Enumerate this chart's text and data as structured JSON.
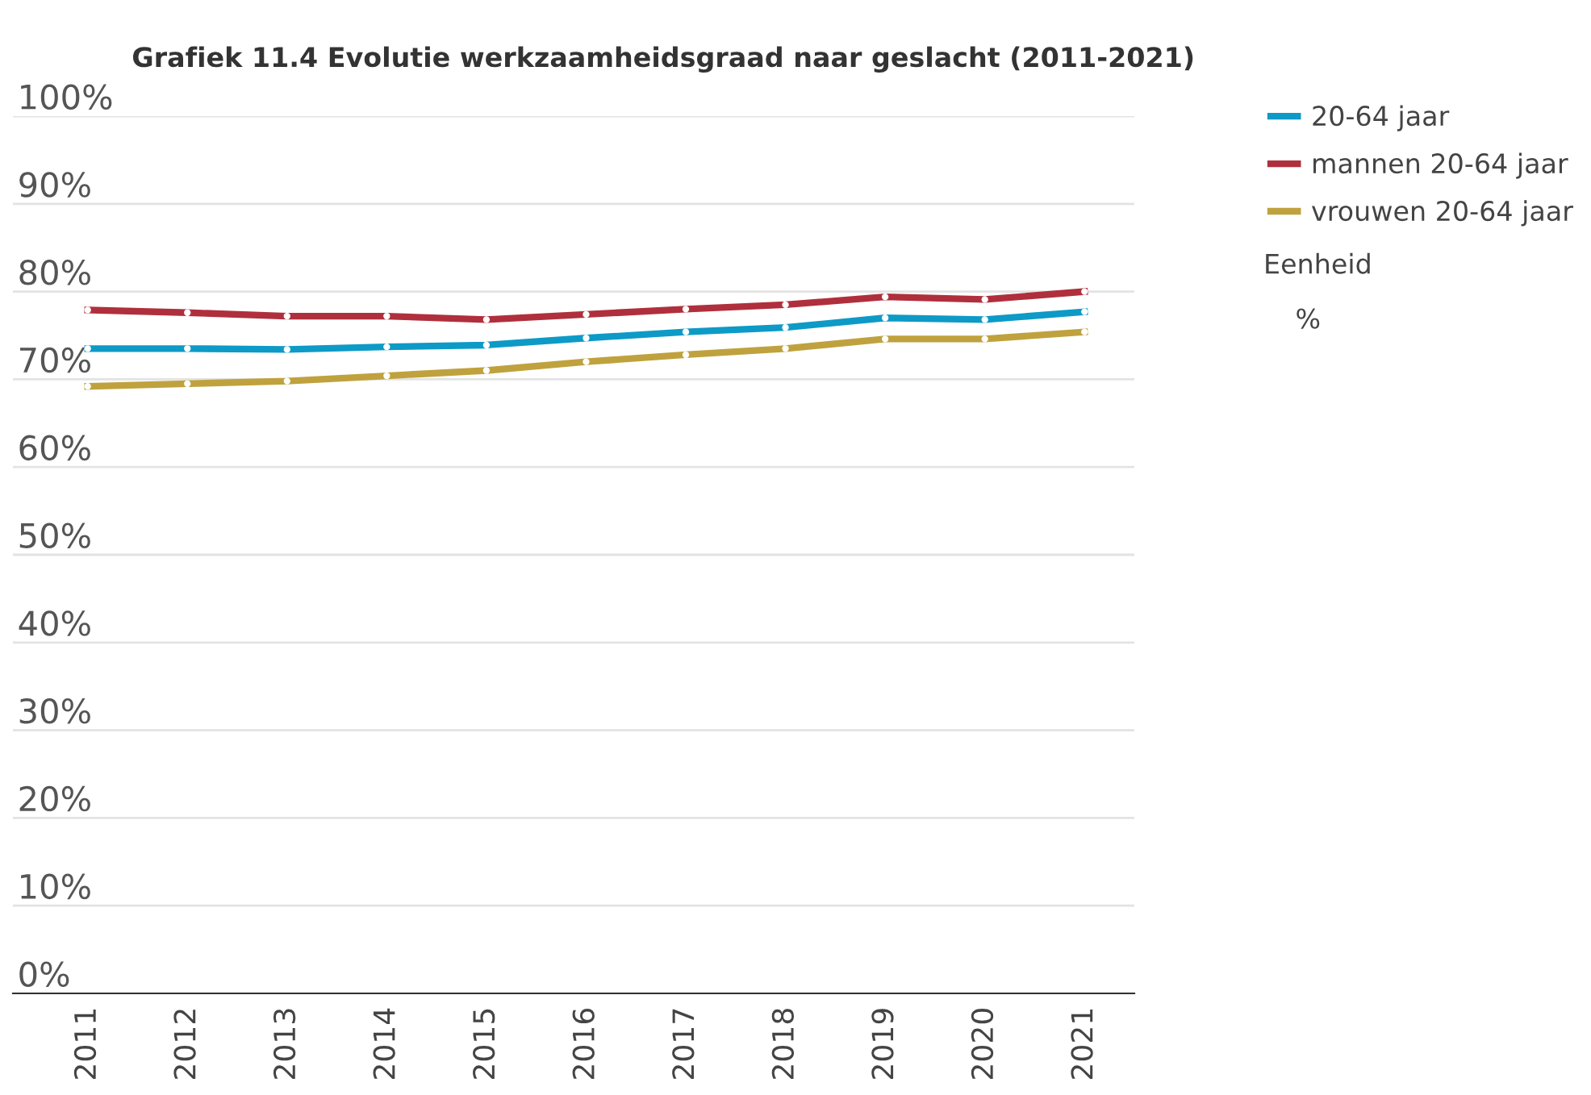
{
  "chart_data": {
    "type": "line",
    "title": "Grafiek 11.4 Evolutie werkzaamheidsgraad naar geslacht (2011-2021)",
    "categories": [
      "2011",
      "2012",
      "2013",
      "2014",
      "2015",
      "2016",
      "2017",
      "2018",
      "2019",
      "2020",
      "2021"
    ],
    "series": [
      {
        "name": "20-64 jaar",
        "color": "#0d9ac6",
        "values": [
          73.5,
          73.5,
          73.4,
          73.7,
          73.9,
          74.7,
          75.4,
          75.9,
          77.0,
          76.8,
          77.7
        ]
      },
      {
        "name": "mannen 20-64 jaar",
        "color": "#b02f3c",
        "values": [
          77.9,
          77.6,
          77.2,
          77.2,
          76.8,
          77.4,
          78.0,
          78.5,
          79.4,
          79.1,
          80.0
        ]
      },
      {
        "name": "vrouwen 20-64 jaar",
        "color": "#bfa23e",
        "values": [
          69.2,
          69.5,
          69.8,
          70.4,
          71.0,
          72.0,
          72.8,
          73.5,
          74.6,
          74.6,
          75.4
        ]
      }
    ],
    "ylim": [
      0,
      100
    ],
    "yticks": [
      {
        "value": 0,
        "label": "0%"
      },
      {
        "value": 10,
        "label": "10%"
      },
      {
        "value": 20,
        "label": "20%"
      },
      {
        "value": 30,
        "label": "30%"
      },
      {
        "value": 40,
        "label": "40%"
      },
      {
        "value": 50,
        "label": "50%"
      },
      {
        "value": 60,
        "label": "60%"
      },
      {
        "value": 70,
        "label": "70%"
      },
      {
        "value": 80,
        "label": "80%"
      },
      {
        "value": 90,
        "label": "90%"
      },
      {
        "value": 100,
        "label": "100%"
      }
    ],
    "grid": "y",
    "legend": "top right",
    "marker": "circle",
    "line_style": "solid",
    "annotations": [
      "Eenheid",
      "%"
    ]
  }
}
